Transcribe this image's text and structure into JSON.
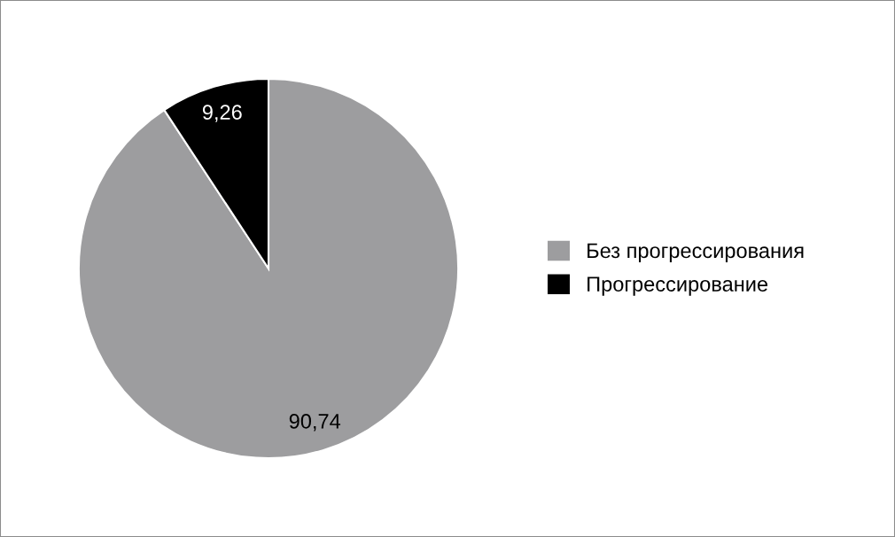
{
  "chart_data": {
    "type": "pie",
    "categories": [
      "Без прогрессирования",
      "Прогрессирование"
    ],
    "values": [
      90.74,
      9.26
    ],
    "colors": [
      "#9d9d9f",
      "#000000"
    ],
    "value_labels": [
      "90,74",
      "9,26"
    ],
    "legend": "right"
  }
}
